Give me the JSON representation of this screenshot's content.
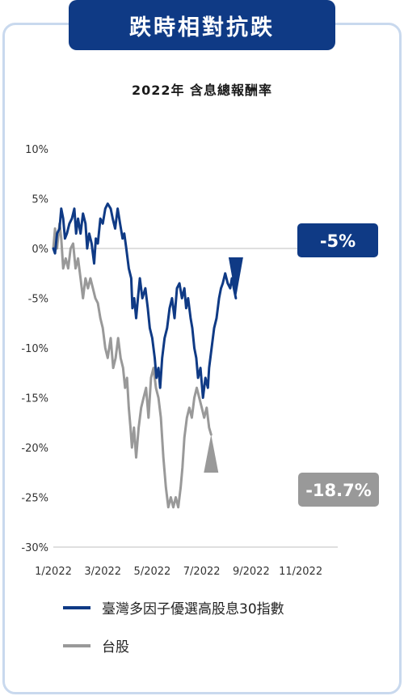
{
  "header": {
    "title": "跌時相對抗跌"
  },
  "chart_data": {
    "type": "line",
    "title": "2022年 含息總報酬率",
    "x_tick_labels": [
      "1/2022",
      "3/2022",
      "5/2022",
      "7/2022",
      "9/2022",
      "11/2022"
    ],
    "y_tick_labels": [
      "10%",
      "5%",
      "0%",
      "-5%",
      "-10%",
      "-15%",
      "-20%",
      "-25%",
      "-30%"
    ],
    "ylim": [
      -30,
      10
    ],
    "x_unit": "month of 2022",
    "series": [
      {
        "name": "臺灣多因子優選高股息30指數",
        "color": "#0f3a85",
        "end_label": "-5%",
        "points": [
          [
            1.0,
            0
          ],
          [
            1.07,
            -0.5
          ],
          [
            1.15,
            1.5
          ],
          [
            1.25,
            2
          ],
          [
            1.32,
            4
          ],
          [
            1.4,
            3
          ],
          [
            1.47,
            1
          ],
          [
            1.55,
            1.5
          ],
          [
            1.65,
            2.5
          ],
          [
            1.75,
            3
          ],
          [
            1.85,
            4
          ],
          [
            1.92,
            1.5
          ],
          [
            2.0,
            3
          ],
          [
            2.1,
            1.5
          ],
          [
            2.2,
            3.5
          ],
          [
            2.3,
            2.5
          ],
          [
            2.37,
            0
          ],
          [
            2.45,
            1.5
          ],
          [
            2.55,
            0.5
          ],
          [
            2.65,
            -1.5
          ],
          [
            2.72,
            1
          ],
          [
            2.8,
            0.5
          ],
          [
            2.9,
            3
          ],
          [
            3.0,
            2.5
          ],
          [
            3.1,
            4
          ],
          [
            3.2,
            4.5
          ],
          [
            3.32,
            4
          ],
          [
            3.4,
            3
          ],
          [
            3.5,
            2
          ],
          [
            3.6,
            4
          ],
          [
            3.7,
            2.5
          ],
          [
            3.8,
            1
          ],
          [
            3.87,
            1.5
          ],
          [
            3.95,
            0
          ],
          [
            4.05,
            -2
          ],
          [
            4.15,
            -3
          ],
          [
            4.2,
            -6
          ],
          [
            4.27,
            -5
          ],
          [
            4.35,
            -7
          ],
          [
            4.42,
            -5
          ],
          [
            4.5,
            -3
          ],
          [
            4.6,
            -5
          ],
          [
            4.72,
            -4
          ],
          [
            4.82,
            -6
          ],
          [
            4.9,
            -8
          ],
          [
            5.0,
            -9
          ],
          [
            5.1,
            -11
          ],
          [
            5.17,
            -13
          ],
          [
            5.25,
            -12
          ],
          [
            5.32,
            -14
          ],
          [
            5.4,
            -11
          ],
          [
            5.5,
            -9
          ],
          [
            5.6,
            -8
          ],
          [
            5.7,
            -6
          ],
          [
            5.8,
            -5
          ],
          [
            5.9,
            -7
          ],
          [
            6.0,
            -4
          ],
          [
            6.1,
            -3.5
          ],
          [
            6.2,
            -5
          ],
          [
            6.3,
            -4
          ],
          [
            6.37,
            -6
          ],
          [
            6.45,
            -5
          ],
          [
            6.55,
            -7
          ],
          [
            6.62,
            -8
          ],
          [
            6.7,
            -10
          ],
          [
            6.78,
            -11
          ],
          [
            6.85,
            -13
          ],
          [
            6.95,
            -12
          ],
          [
            7.05,
            -15
          ],
          [
            7.15,
            -13
          ],
          [
            7.25,
            -14
          ],
          [
            7.3,
            -12
          ],
          [
            7.4,
            -10
          ],
          [
            7.5,
            -8
          ],
          [
            7.6,
            -7
          ],
          [
            7.7,
            -5
          ],
          [
            7.78,
            -4
          ],
          [
            7.85,
            -3.5
          ],
          [
            7.95,
            -2.5
          ],
          [
            8.05,
            -3.5
          ],
          [
            8.15,
            -4
          ],
          [
            8.22,
            -3
          ],
          [
            8.3,
            -4
          ],
          [
            8.38,
            -5
          ]
        ]
      },
      {
        "name": "台股",
        "color": "#999999",
        "end_label": "-18.7%",
        "points": [
          [
            1.0,
            0
          ],
          [
            1.07,
            2
          ],
          [
            1.15,
            0
          ],
          [
            1.25,
            2.5
          ],
          [
            1.32,
            1
          ],
          [
            1.4,
            -2
          ],
          [
            1.5,
            -1
          ],
          [
            1.6,
            -2
          ],
          [
            1.7,
            0
          ],
          [
            1.8,
            0.5
          ],
          [
            1.9,
            -2
          ],
          [
            2.0,
            -1
          ],
          [
            2.1,
            -3
          ],
          [
            2.2,
            -5
          ],
          [
            2.3,
            -3
          ],
          [
            2.4,
            -4
          ],
          [
            2.5,
            -3
          ],
          [
            2.6,
            -4
          ],
          [
            2.7,
            -5
          ],
          [
            2.8,
            -5.5
          ],
          [
            2.9,
            -7
          ],
          [
            3.0,
            -8
          ],
          [
            3.1,
            -10
          ],
          [
            3.2,
            -11
          ],
          [
            3.32,
            -9
          ],
          [
            3.42,
            -12
          ],
          [
            3.52,
            -11
          ],
          [
            3.62,
            -9
          ],
          [
            3.72,
            -11
          ],
          [
            3.82,
            -12
          ],
          [
            3.9,
            -14
          ],
          [
            3.98,
            -13
          ],
          [
            4.05,
            -16
          ],
          [
            4.12,
            -18
          ],
          [
            4.18,
            -20
          ],
          [
            4.26,
            -18
          ],
          [
            4.35,
            -21
          ],
          [
            4.45,
            -18
          ],
          [
            4.55,
            -16
          ],
          [
            4.65,
            -15
          ],
          [
            4.75,
            -14
          ],
          [
            4.85,
            -17
          ],
          [
            4.95,
            -13
          ],
          [
            5.05,
            -12
          ],
          [
            5.15,
            -14
          ],
          [
            5.25,
            -15
          ],
          [
            5.35,
            -17
          ],
          [
            5.45,
            -21
          ],
          [
            5.55,
            -24
          ],
          [
            5.65,
            -26
          ],
          [
            5.75,
            -25
          ],
          [
            5.85,
            -26
          ],
          [
            5.95,
            -25
          ],
          [
            6.05,
            -26
          ],
          [
            6.15,
            -24
          ],
          [
            6.22,
            -22
          ],
          [
            6.3,
            -19
          ],
          [
            6.4,
            -17
          ],
          [
            6.5,
            -16
          ],
          [
            6.6,
            -17
          ],
          [
            6.7,
            -15
          ],
          [
            6.8,
            -14
          ],
          [
            6.9,
            -15
          ],
          [
            7.0,
            -16
          ],
          [
            7.1,
            -17
          ],
          [
            7.2,
            -16
          ],
          [
            7.3,
            -18
          ],
          [
            7.38,
            -18.7
          ]
        ]
      }
    ]
  },
  "legend": [
    {
      "label": "臺灣多因子優選高股息30指數",
      "color": "#0f3a85"
    },
    {
      "label": "台股",
      "color": "#999999"
    }
  ]
}
